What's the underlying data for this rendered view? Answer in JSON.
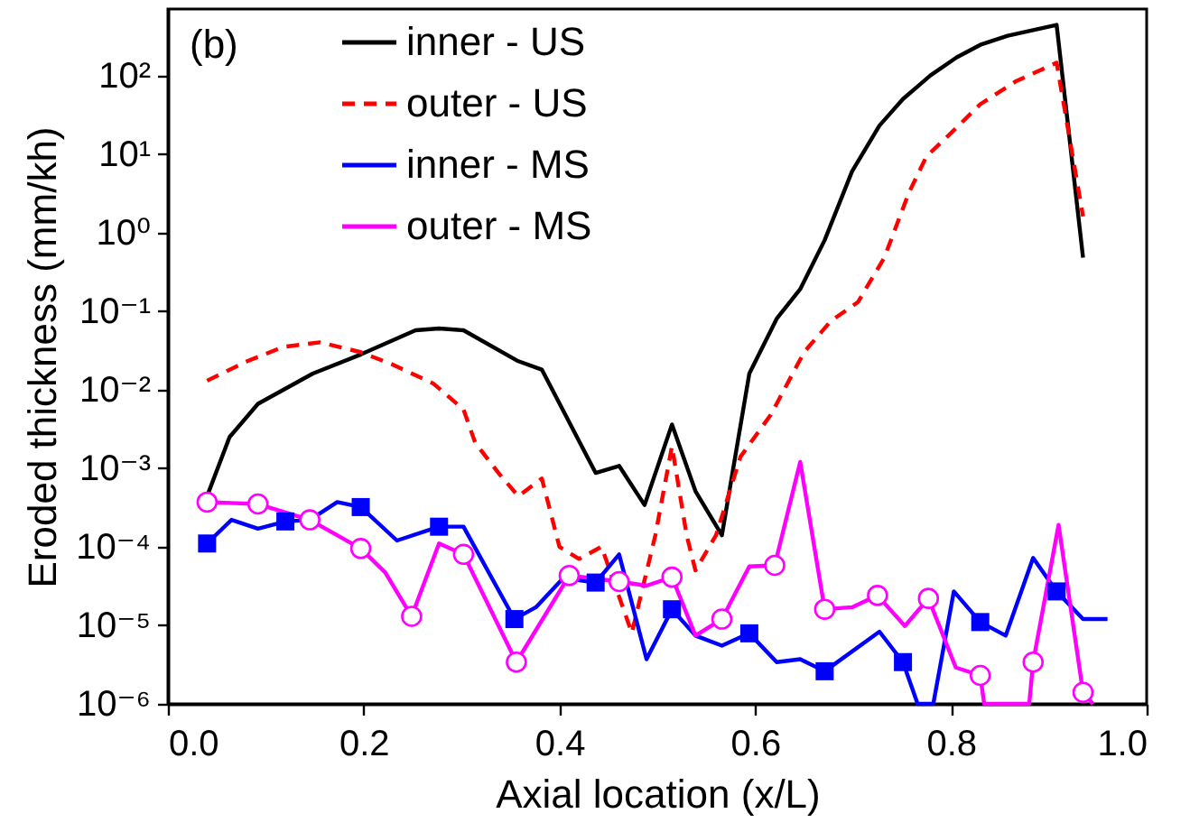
{
  "chart_data": {
    "type": "line",
    "title": "(b)",
    "xlabel": "Axial location (x/L)",
    "ylabel": "Eroded thickness (mm/kh)",
    "log": "y",
    "grid": false,
    "legend": "top",
    "xlim": [
      0,
      1
    ],
    "xticks": [
      {
        "value": 0,
        "label": "0.0"
      },
      {
        "value": 0.2,
        "label": "0.2"
      },
      {
        "value": 0.4,
        "label": "0.4"
      },
      {
        "value": 0.6,
        "label": "0.6"
      },
      {
        "value": 0.8,
        "label": "0.8"
      },
      {
        "value": 1,
        "label": "1.0"
      }
    ],
    "ylim": [
      1e-06,
      700
    ],
    "yticks": [
      {
        "value": 1e-06,
        "label": "10⁻⁶"
      },
      {
        "value": 1e-05,
        "label": "10⁻⁵"
      },
      {
        "value": 0.0001,
        "label": "10⁻⁴"
      },
      {
        "value": 0.001,
        "label": "10⁻³"
      },
      {
        "value": 0.01,
        "label": "10⁻²"
      },
      {
        "value": 0.1,
        "label": "10⁻¹"
      },
      {
        "value": 1,
        "label": "10⁰"
      },
      {
        "value": 10,
        "label": "10¹"
      },
      {
        "value": 100,
        "label": "10²"
      }
    ],
    "series": [
      {
        "name": "inner - US",
        "color": "#000000",
        "line_style": "solid",
        "marker": "none",
        "x": [
          0.04,
          0.063,
          0.092,
          0.148,
          0.197,
          0.253,
          0.277,
          0.302,
          0.358,
          0.382,
          0.406,
          0.437,
          0.461,
          0.487,
          0.515,
          0.539,
          0.566,
          0.594,
          0.622,
          0.646,
          0.671,
          0.699,
          0.727,
          0.751,
          0.779,
          0.806,
          0.83,
          0.858,
          0.908,
          0.935
        ],
        "values": [
          0.00044,
          0.0025,
          0.0066,
          0.016,
          0.028,
          0.057,
          0.06,
          0.057,
          0.023,
          0.018,
          0.0048,
          0.00087,
          0.00107,
          0.00034,
          0.0036,
          0.00051,
          0.00014,
          0.016,
          0.08,
          0.19,
          0.8,
          6,
          23,
          50,
          100,
          170,
          245,
          320,
          440,
          0.48
        ]
      },
      {
        "name": "outer - US",
        "color": "#ff0000",
        "line_style": "dashed",
        "marker": "none",
        "x": [
          0.04,
          0.081,
          0.118,
          0.155,
          0.197,
          0.229,
          0.271,
          0.302,
          0.314,
          0.339,
          0.358,
          0.382,
          0.4,
          0.42,
          0.443,
          0.474,
          0.498,
          0.515,
          0.53,
          0.539,
          0.56,
          0.585,
          0.616,
          0.65,
          0.677,
          0.705,
          0.732,
          0.757,
          0.775,
          0.803,
          0.83,
          0.867,
          0.908,
          0.935
        ],
        "values": [
          0.013,
          0.023,
          0.035,
          0.04,
          0.03,
          0.021,
          0.012,
          0.0056,
          0.0021,
          0.00083,
          0.00044,
          0.00074,
          0.0001,
          7e-05,
          0.0001,
          8e-06,
          0.00014,
          0.0019,
          0.00014,
          5e-05,
          0.00014,
          0.0014,
          0.0048,
          0.03,
          0.074,
          0.13,
          0.48,
          3.2,
          9.3,
          20,
          43,
          85,
          145,
          1.6
        ]
      },
      {
        "name": "inner - MS",
        "color": "#0000ff",
        "line_style": "solid",
        "marker": "none",
        "x": [
          0.04,
          0.065,
          0.092,
          0.12,
          0.145,
          0.173,
          0.197,
          0.234,
          0.277,
          0.302,
          0.354,
          0.376,
          0.404,
          0.437,
          0.461,
          0.489,
          0.515,
          0.539,
          0.566,
          0.594,
          0.622,
          0.646,
          0.671,
          0.727,
          0.751,
          0.766,
          0.782,
          0.803,
          0.83,
          0.856,
          0.884,
          0.908,
          0.935,
          0.96
        ],
        "values": [
          0.00011,
          0.00022,
          0.00017,
          0.00021,
          0.00022,
          0.00037,
          0.00032,
          0.00012,
          0.00018,
          0.00018,
          1.2e-05,
          1.7e-05,
          4e-05,
          3.5e-05,
          8e-05,
          3.7e-06,
          1.6e-05,
          7.4e-06,
          5.5e-06,
          7.9e-06,
          3.4e-06,
          3.7e-06,
          2.6e-06,
          8.3e-06,
          3.4e-06,
          1e-06,
          1e-06,
          2.7e-05,
          1.1e-05,
          7.4e-06,
          7.2e-05,
          2.7e-05,
          1.2e-05,
          1.2e-05
        ]
      },
      {
        "name": "outer - MS",
        "color": "#ff00ff",
        "line_style": "solid",
        "marker": "none",
        "x": [
          0.04,
          0.092,
          0.145,
          0.197,
          0.222,
          0.249,
          0.277,
          0.302,
          0.356,
          0.41,
          0.461,
          0.489,
          0.515,
          0.539,
          0.566,
          0.594,
          0.62,
          0.646,
          0.671,
          0.699,
          0.725,
          0.753,
          0.777,
          0.805,
          0.83,
          0.834,
          0.88,
          0.884,
          0.91,
          0.935,
          0.945
        ],
        "values": [
          0.00037,
          0.00035,
          0.00022,
          9.5e-05,
          4.7e-05,
          1.3e-05,
          0.00011,
          8e-05,
          3.4e-06,
          4.3e-05,
          3.6e-05,
          3.2e-05,
          4.1e-05,
          7.4e-06,
          1.2e-05,
          5.6e-05,
          5.8e-05,
          0.0012,
          1.6e-05,
          1.7e-05,
          2.4e-05,
          9.8e-06,
          2.2e-05,
          2.9e-06,
          2.3e-06,
          1e-06,
          1e-06,
          3.4e-06,
          0.00019,
          1.4e-06,
          1e-06
        ]
      },
      {
        "type": "scatter",
        "color": "#0000ff",
        "marker": "square",
        "x": [
          0.04,
          0.12,
          0.197,
          0.277,
          0.354,
          0.437,
          0.515,
          0.594,
          0.671,
          0.751,
          0.83,
          0.908
        ],
        "values": [
          0.00011,
          0.00021,
          0.00032,
          0.00018,
          1.2e-05,
          3.5e-05,
          1.6e-05,
          7.9e-06,
          2.6e-06,
          3.4e-06,
          1.1e-05,
          2.7e-05
        ]
      },
      {
        "type": "scatter",
        "color": "#ff00ff",
        "marker": "circle",
        "x": [
          0.04,
          0.092,
          0.145,
          0.197,
          0.249,
          0.302,
          0.356,
          0.41,
          0.461,
          0.515,
          0.566,
          0.62,
          0.671,
          0.725,
          0.777,
          0.83,
          0.884,
          0.935
        ],
        "values": [
          0.00037,
          0.00035,
          0.00022,
          9.5e-05,
          1.3e-05,
          8e-05,
          3.4e-06,
          4.3e-05,
          3.6e-05,
          4.1e-05,
          1.2e-05,
          5.8e-05,
          1.6e-05,
          2.4e-05,
          2.2e-05,
          2.3e-06,
          3.4e-06,
          1.4e-06
        ]
      }
    ]
  }
}
